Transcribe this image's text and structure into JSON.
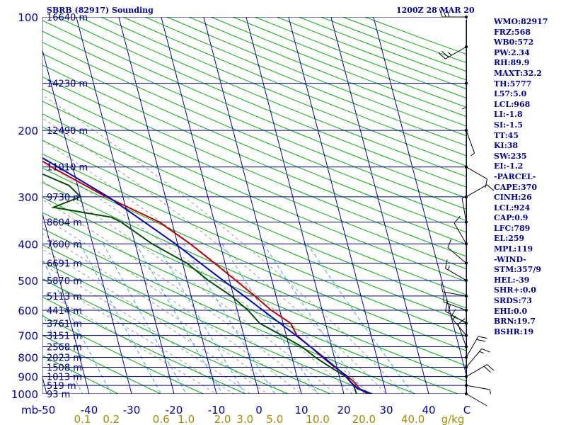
{
  "header": {
    "title": "SBRB (82917) Sounding",
    "datetime": "1200Z 28 MAR 20"
  },
  "indices": [
    "WMO:82917",
    "FRZ:568",
    "WB0:572",
    "PW:2.34",
    "RH:89.9",
    "MAXT:32.2",
    "TH:5777",
    "L57:5.0",
    "LCL:968",
    "LI:-1.8",
    "SI:-1.5",
    "TT:45",
    "KI:38",
    "SW:235",
    "EI:-1.2",
    "-PARCEL-",
    "CAPE:370",
    "CINH:26",
    "LCL:924",
    "CAP:0.9",
    "LFC:789",
    "EL:259",
    "MPL:119",
    "-WIND-",
    "STM:357/9",
    "HEL:-39",
    "SHR+:0.0",
    "SRDS:73",
    "EHI:0.0",
    "BRN:19.7",
    "BSHR:19"
  ],
  "colors": {
    "isobar": "#0000a0",
    "isotherm": "#0000a0",
    "dry_adiabat": "#00b400",
    "moist_adiabat": "#9a9a9a",
    "mixing_ratio": "#30a8e0",
    "temperature": "#c00000",
    "dewpoint": "#005000",
    "parcel": "#0000c0",
    "text": "#0000a0",
    "mixing_label": "#a09000"
  },
  "chart_data": {
    "type": "line",
    "diagram": "skew-T log-P",
    "pressure_levels": [
      {
        "p": 100,
        "label": "100",
        "height": "16640 m"
      },
      {
        "p": 150,
        "label": "",
        "height": "14230 m"
      },
      {
        "p": 200,
        "label": "200",
        "height": "12490 m"
      },
      {
        "p": 250,
        "label": "",
        "height": "11010 m"
      },
      {
        "p": 300,
        "label": "300",
        "height": "9730 m"
      },
      {
        "p": 350,
        "label": "",
        "height": "8604 m"
      },
      {
        "p": 400,
        "label": "400",
        "height": "7600 m"
      },
      {
        "p": 450,
        "label": "",
        "height": "6691 m"
      },
      {
        "p": 500,
        "label": "500",
        "height": "5870 m"
      },
      {
        "p": 550,
        "label": "",
        "height": "5113 m"
      },
      {
        "p": 600,
        "label": "600",
        "height": "4414 m"
      },
      {
        "p": 650,
        "label": "",
        "height": "3761 m"
      },
      {
        "p": 700,
        "label": "700",
        "height": "3151 m"
      },
      {
        "p": 750,
        "label": "",
        "height": "2568 m"
      },
      {
        "p": 800,
        "label": "800",
        "height": "2023 m"
      },
      {
        "p": 850,
        "label": "",
        "height": "1508 m"
      },
      {
        "p": 900,
        "label": "900",
        "height": "1013 m"
      },
      {
        "p": 950,
        "label": "",
        "height": "519 m"
      },
      {
        "p": 1000,
        "label": "1000",
        "height": "93 m"
      }
    ],
    "pressure_unit_label": "mb",
    "temperature_ticks": [
      -50,
      -40,
      -30,
      -20,
      -10,
      0,
      10,
      20,
      30,
      40
    ],
    "temperature_tick_labels": [
      "-50",
      "-40",
      "-30",
      "-20",
      "-10",
      "0",
      "10",
      "20",
      "30",
      "40"
    ],
    "temperature_axis_end_label": "C",
    "mixing_ratio_values": [
      0.1,
      0.2,
      0.6,
      1.0,
      2.0,
      3.0,
      5.0,
      10.0,
      20.0,
      40.0
    ],
    "mixing_ratio_labels": [
      "0.1",
      "0.2",
      "0.6",
      "1.0",
      "2.0",
      "3.0",
      "5.0",
      "10.0",
      "20.0",
      "40.0"
    ],
    "mixing_ratio_unit_label": "g/kg",
    "series": [
      {
        "key": "temperature",
        "points": [
          [
            1000,
            25.6
          ],
          [
            970,
            24
          ],
          [
            925,
            23
          ],
          [
            900,
            22
          ],
          [
            850,
            19.5
          ],
          [
            800,
            17.2
          ],
          [
            760,
            15.5
          ],
          [
            700,
            12.5
          ],
          [
            650,
            11.8
          ],
          [
            600,
            8
          ],
          [
            550,
            5
          ],
          [
            500,
            1.5
          ],
          [
            450,
            -2.5
          ],
          [
            400,
            -7
          ],
          [
            350,
            -13
          ],
          [
            300,
            -24
          ],
          [
            250,
            -35
          ],
          [
            200,
            -46
          ],
          [
            160,
            -58
          ],
          [
            140,
            -65
          ],
          [
            125,
            -64
          ],
          [
            100,
            -66
          ]
        ]
      },
      {
        "key": "dewpoint",
        "points": [
          [
            1000,
            23
          ],
          [
            950,
            22.8
          ],
          [
            900,
            21.5
          ],
          [
            850,
            18.5
          ],
          [
            800,
            15.5
          ],
          [
            750,
            13
          ],
          [
            700,
            9
          ],
          [
            650,
            4.5
          ],
          [
            600,
            2.5
          ],
          [
            550,
            -0.5
          ],
          [
            500,
            -5
          ],
          [
            450,
            -9
          ],
          [
            400,
            -16
          ],
          [
            350,
            -22
          ],
          [
            340,
            -24
          ],
          [
            320,
            -37
          ],
          [
            300,
            -30
          ],
          [
            280,
            -32
          ],
          [
            250,
            -41
          ],
          [
            200,
            -56
          ],
          [
            160,
            -67
          ],
          [
            130,
            -74
          ],
          [
            110,
            -74
          ],
          [
            100,
            -76
          ]
        ]
      },
      {
        "key": "parcel",
        "points": [
          [
            1000,
            26.5
          ],
          [
            968,
            23.5
          ],
          [
            925,
            22.2
          ],
          [
            900,
            21.8
          ],
          [
            850,
            19.7
          ],
          [
            800,
            17.5
          ],
          [
            750,
            15
          ],
          [
            700,
            12.3
          ],
          [
            650,
            9.3
          ],
          [
            600,
            6
          ],
          [
            550,
            2.5
          ],
          [
            500,
            -1.5
          ],
          [
            450,
            -5.8
          ],
          [
            400,
            -10.5
          ],
          [
            350,
            -16.5
          ],
          [
            300,
            -23.5
          ],
          [
            259,
            -31.5
          ],
          [
            200,
            -46
          ],
          [
            150,
            -62
          ],
          [
            120,
            -73
          ],
          [
            110,
            -76
          ]
        ]
      }
    ],
    "wind_barbs": [
      {
        "p": 1000,
        "dir": 120,
        "spd": 4
      },
      {
        "p": 950,
        "dir": 100,
        "spd": 8
      },
      {
        "p": 900,
        "dir": 60,
        "spd": 20
      },
      {
        "p": 850,
        "dir": 40,
        "spd": 15
      },
      {
        "p": 800,
        "dir": 30,
        "spd": 20
      },
      {
        "p": 750,
        "dir": 340,
        "spd": 10
      },
      {
        "p": 700,
        "dir": 320,
        "spd": 15
      },
      {
        "p": 650,
        "dir": 300,
        "spd": 20
      },
      {
        "p": 600,
        "dir": 290,
        "spd": 15
      },
      {
        "p": 550,
        "dir": 280,
        "spd": 10
      },
      {
        "p": 500,
        "dir": 300,
        "spd": 15
      },
      {
        "p": 450,
        "dir": 310,
        "spd": 10
      },
      {
        "p": 400,
        "dir": 330,
        "spd": 10
      },
      {
        "p": 350,
        "dir": 350,
        "spd": 5
      },
      {
        "p": 300,
        "dir": 60,
        "spd": 10
      },
      {
        "p": 250,
        "dir": 120,
        "spd": 10
      },
      {
        "p": 200,
        "dir": 160,
        "spd": 5
      },
      {
        "p": 150,
        "dir": 180,
        "spd": 5
      },
      {
        "p": 120,
        "dir": 240,
        "spd": 25
      },
      {
        "p": 100,
        "dir": 270,
        "spd": 30
      }
    ]
  }
}
